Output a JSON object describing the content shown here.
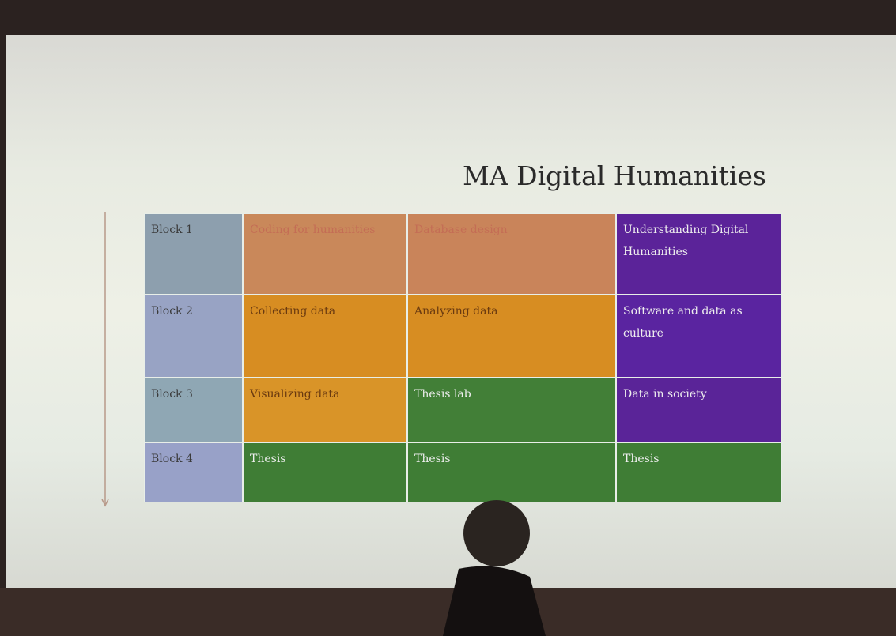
{
  "slide": {
    "title": "MA Digital Humanities",
    "table": {
      "rows": [
        [
          "Block 1",
          "Coding for humanities",
          "Database design",
          "Understanding Digital Humanities"
        ],
        [
          "Block 2",
          "Collecting data",
          "Analyzing data",
          "Software and data as culture"
        ],
        [
          "Block 3",
          "Visualizing data",
          "Thesis lab",
          "Data in society"
        ],
        [
          "Block 4",
          "Thesis",
          "Thesis",
          "Thesis"
        ]
      ]
    }
  }
}
